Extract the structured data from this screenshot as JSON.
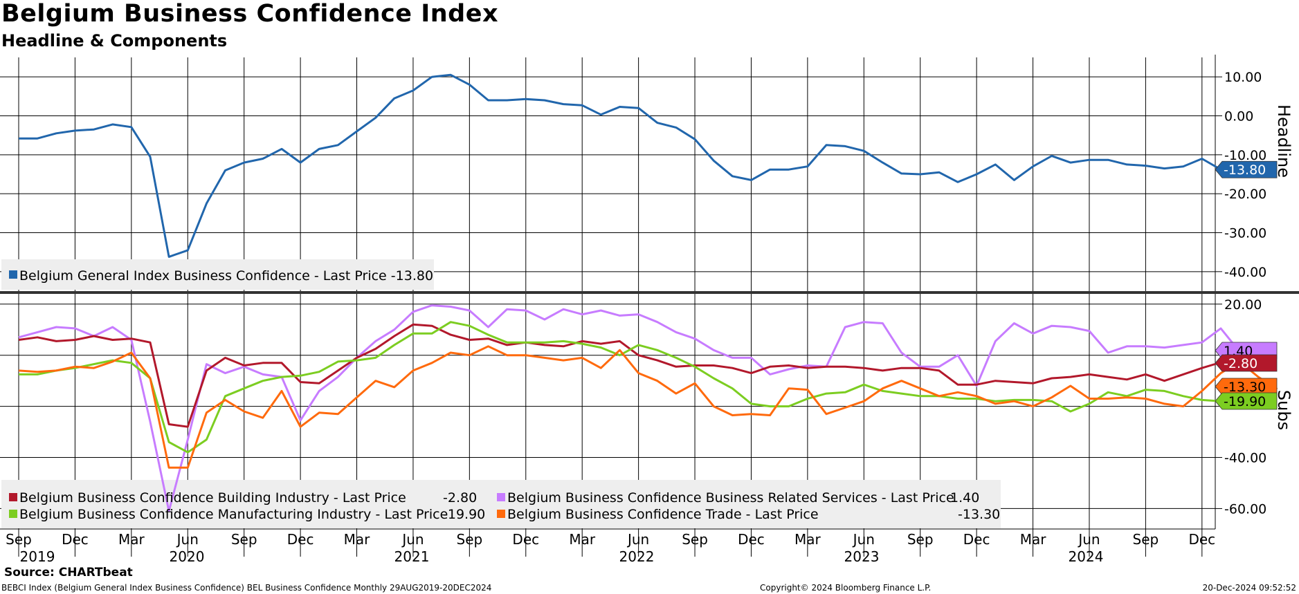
{
  "title": "Belgium Business Confidence Index",
  "subtitle": "Headline & Components",
  "source": "Source: CHARTbeat",
  "footer": {
    "left": "BEBCI Index (Belgium General Index Business Confidence) BEL Business Confidence  Monthly 29AUG2019-20DEC2024",
    "middle": "Copyright© 2024 Bloomberg Finance L.P.",
    "right": "20-Dec-2024 09:52:52"
  },
  "colors": {
    "headline": "#2166ac",
    "building": "#b2182b",
    "services": "#c77cff",
    "manufacturing": "#7ccd21",
    "trade": "#ff6a0d"
  },
  "chart_data": [
    {
      "type": "line",
      "panel": "top",
      "ylabel": "Headline",
      "ylim": [
        -45,
        15
      ],
      "yticks": [
        10,
        0,
        -10,
        -20,
        -30,
        -40
      ],
      "ytick_labels": [
        "10.00",
        "0.00",
        "-10.00",
        "-20.00",
        "-30.00",
        "-40.00"
      ],
      "grid": true,
      "legend_position": "bottom-left",
      "series": [
        {
          "name": "Belgium General Index Business Confidence - Last Price",
          "legend_value": "-13.80",
          "last_label": "-13.80",
          "color_key": "headline",
          "values": [
            -5.8,
            -5.8,
            -4.5,
            -3.8,
            -3.5,
            -2.2,
            -2.9,
            -10.5,
            -36.2,
            -34.5,
            -22.5,
            -14,
            -12,
            -11,
            -8.5,
            -12,
            -8.5,
            -7.5,
            -4,
            -0.5,
            4.5,
            6.5,
            10,
            10.5,
            8,
            4,
            4,
            4.3,
            4,
            3,
            2.7,
            0.3,
            2.3,
            2,
            -1.8,
            -3,
            -6,
            -11.5,
            -15.5,
            -16.5,
            -13.8,
            -13.8,
            -13,
            -7.5,
            -7.8,
            -9,
            -12,
            -14.8,
            -15,
            -14.5,
            -17,
            -15,
            -12.5,
            -16.5,
            -13,
            -10.3,
            -12,
            -11.3,
            -11.3,
            -12.5,
            -12.8,
            -13.5,
            -13,
            -11,
            -13.8
          ]
        }
      ]
    },
    {
      "type": "line",
      "panel": "bottom",
      "ylabel": "Subs",
      "ylim": [
        -68,
        24
      ],
      "yticks": [
        20,
        0,
        -20,
        -40,
        -60
      ],
      "ytick_labels": [
        "20.00",
        "",
        "",
        "-40.00",
        "-60.00"
      ],
      "grid": true,
      "legend_position": "bottom-left",
      "series": [
        {
          "name": "Belgium Business Confidence Building Industry - Last Price",
          "legend_value": "-2.80",
          "last_label": "-2.80",
          "color_key": "building",
          "values": [
            6,
            7,
            5.5,
            6,
            7.5,
            6,
            6.5,
            5,
            -27,
            -28,
            -6,
            -1,
            -4,
            -3,
            -3,
            -10.5,
            -11,
            -6,
            -1,
            2.5,
            7.5,
            12,
            11.5,
            8,
            6,
            6.5,
            4,
            5,
            4,
            3.5,
            5.5,
            4.5,
            5.5,
            0,
            -2,
            -4.5,
            -4,
            -4,
            -5,
            -7,
            -4.5,
            -4,
            -5,
            -4.5,
            -4.5,
            -5,
            -6,
            -5,
            -5,
            -6,
            -11.5,
            -11.5,
            -10,
            -10.5,
            -11,
            -9,
            -8.5,
            -7.5,
            -8.5,
            -9.5,
            -7.5,
            -10,
            -7.5,
            -5,
            -2.8
          ]
        },
        {
          "name": "Belgium Business Confidence Business Related Services - Last Price",
          "legend_value": "1.40",
          "last_label": "1.40",
          "color_key": "services",
          "values": [
            7,
            9,
            11,
            10.5,
            7.5,
            11,
            6,
            -26,
            -61,
            -33,
            -3.5,
            -7,
            -4.5,
            -7.5,
            -8.5,
            -25.5,
            -14,
            -8.5,
            -1,
            5.5,
            10,
            17,
            19.5,
            19,
            17.5,
            11,
            18,
            17.5,
            14,
            18,
            16,
            17.5,
            15.5,
            16,
            13,
            9,
            6.5,
            2,
            -1,
            -1,
            -7.5,
            -5.5,
            -4,
            -4.5,
            11,
            13,
            12.5,
            1,
            -4.5,
            -4.5,
            0,
            -12,
            5.5,
            12.5,
            8.5,
            11.5,
            11,
            9.5,
            1,
            3.5,
            3.5,
            3,
            4,
            5,
            10.5,
            1.4
          ]
        },
        {
          "name": "Belgium Business Confidence Manufacturing Industry - Last Price",
          "legend_value": "-19.90",
          "last_label": "-19.90",
          "color_key": "manufacturing",
          "values": [
            -7.5,
            -7.5,
            -6,
            -5,
            -3.5,
            -2,
            -3,
            -9,
            -34,
            -38,
            -33,
            -16,
            -13,
            -10,
            -8.5,
            -8,
            -6.5,
            -2.5,
            -2,
            -1,
            4,
            8.5,
            8.5,
            13,
            11.5,
            8,
            5,
            5,
            5,
            5.5,
            4.5,
            3,
            0,
            4,
            2,
            -1,
            -4.5,
            -9,
            -13,
            -19,
            -20,
            -20,
            -17,
            -15,
            -14.5,
            -11.5,
            -14,
            -15,
            -16,
            -16,
            -17,
            -17,
            -18,
            -17.5,
            -17.5,
            -18,
            -22,
            -19,
            -14.5,
            -16,
            -13.5,
            -14,
            -16,
            -17.5,
            -18,
            -18.5,
            -19.9
          ]
        },
        {
          "name": "Belgium Business Confidence Trade - Last Price",
          "legend_value": "-13.30",
          "last_label": "-13.30",
          "color_key": "trade",
          "values": [
            -6,
            -6.5,
            -6,
            -4.5,
            -5,
            -2.5,
            1,
            -9,
            -44,
            -44,
            -22.5,
            -17.5,
            -22,
            -24.5,
            -14,
            -28,
            -22.5,
            -23,
            -16.5,
            -10,
            -12.5,
            -6,
            -3,
            1,
            0,
            3.5,
            0,
            0,
            -1,
            -2,
            -1,
            -5,
            2,
            -7,
            -10,
            -15,
            -11,
            -20,
            -23.5,
            -23,
            -23.5,
            -13,
            -13.5,
            -23,
            -20.5,
            -18,
            -13,
            -10,
            -13,
            -16,
            -14.5,
            -16,
            -19,
            -18,
            -20,
            -16.5,
            -12,
            -17,
            -17,
            -16.5,
            -17,
            -19,
            -20,
            -14,
            -7,
            -2.5,
            -8.5,
            -13.3
          ]
        }
      ]
    }
  ],
  "x_axis": {
    "month_labels": [
      "Sep",
      "Dec",
      "Mar",
      "Jun",
      "Sep",
      "Dec",
      "Mar",
      "Jun",
      "Sep",
      "Dec",
      "Mar",
      "Jun",
      "Sep",
      "Dec",
      "Mar",
      "Jun",
      "Sep",
      "Dec",
      "Mar",
      "Jun",
      "Sep",
      "Dec"
    ],
    "year_labels": [
      "2019",
      "2020",
      "2021",
      "2022",
      "2023",
      "2024"
    ]
  }
}
